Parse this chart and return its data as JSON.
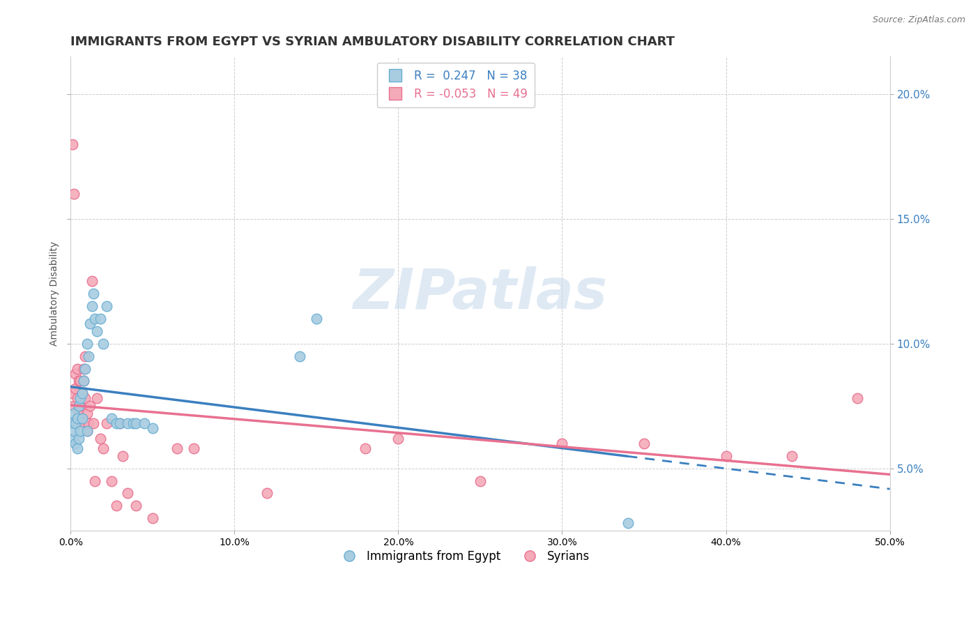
{
  "title": "IMMIGRANTS FROM EGYPT VS SYRIAN AMBULATORY DISABILITY CORRELATION CHART",
  "source": "Source: ZipAtlas.com",
  "ylabel": "Ambulatory Disability",
  "legend_labels": [
    "Immigrants from Egypt",
    "Syrians"
  ],
  "egypt_R": 0.247,
  "egypt_N": 38,
  "syria_R": -0.053,
  "syria_N": 49,
  "egypt_color": "#a8cce0",
  "syria_color": "#f4aab8",
  "egypt_edge": "#6aafd4",
  "syria_edge": "#e87090",
  "trend_egypt_color": "#3a7fbf",
  "trend_syria_color": "#e87090",
  "watermark_text": "ZIPatlas",
  "watermark_color": "#c5d8ec",
  "xlim": [
    0,
    0.5
  ],
  "ylim": [
    0.025,
    0.215
  ],
  "yticks": [
    0.05,
    0.1,
    0.15,
    0.2
  ],
  "xticks": [
    0.0,
    0.1,
    0.2,
    0.3,
    0.4,
    0.5
  ],
  "egypt_x": [
    0.001,
    0.001,
    0.002,
    0.002,
    0.003,
    0.003,
    0.004,
    0.004,
    0.005,
    0.005,
    0.006,
    0.006,
    0.007,
    0.007,
    0.008,
    0.009,
    0.01,
    0.01,
    0.011,
    0.012,
    0.013,
    0.014,
    0.015,
    0.016,
    0.018,
    0.02,
    0.022,
    0.025,
    0.028,
    0.03,
    0.035,
    0.038,
    0.04,
    0.045,
    0.05,
    0.14,
    0.15,
    0.34
  ],
  "egypt_y": [
    0.062,
    0.068,
    0.065,
    0.072,
    0.06,
    0.068,
    0.058,
    0.07,
    0.062,
    0.075,
    0.065,
    0.078,
    0.07,
    0.08,
    0.085,
    0.09,
    0.065,
    0.1,
    0.095,
    0.108,
    0.115,
    0.12,
    0.11,
    0.105,
    0.11,
    0.1,
    0.115,
    0.07,
    0.068,
    0.068,
    0.068,
    0.068,
    0.068,
    0.068,
    0.066,
    0.095,
    0.11,
    0.028
  ],
  "syria_x": [
    0.001,
    0.001,
    0.002,
    0.002,
    0.003,
    0.003,
    0.004,
    0.004,
    0.005,
    0.005,
    0.005,
    0.006,
    0.006,
    0.007,
    0.007,
    0.008,
    0.008,
    0.008,
    0.009,
    0.009,
    0.01,
    0.01,
    0.011,
    0.012,
    0.013,
    0.014,
    0.015,
    0.016,
    0.018,
    0.02,
    0.022,
    0.025,
    0.028,
    0.03,
    0.032,
    0.035,
    0.04,
    0.05,
    0.065,
    0.075,
    0.12,
    0.18,
    0.2,
    0.25,
    0.3,
    0.35,
    0.4,
    0.44,
    0.48
  ],
  "syria_y": [
    0.18,
    0.08,
    0.16,
    0.075,
    0.088,
    0.082,
    0.09,
    0.078,
    0.085,
    0.068,
    0.072,
    0.085,
    0.075,
    0.08,
    0.07,
    0.085,
    0.09,
    0.068,
    0.078,
    0.095,
    0.065,
    0.072,
    0.068,
    0.075,
    0.125,
    0.068,
    0.045,
    0.078,
    0.062,
    0.058,
    0.068,
    0.045,
    0.035,
    0.068,
    0.055,
    0.04,
    0.035,
    0.03,
    0.058,
    0.058,
    0.04,
    0.058,
    0.062,
    0.045,
    0.06,
    0.06,
    0.055,
    0.055,
    0.078
  ],
  "background_color": "#ffffff",
  "grid_color": "#cccccc",
  "title_color": "#333333",
  "title_fontsize": 13,
  "axis_fontsize": 10,
  "marker_size": 110
}
